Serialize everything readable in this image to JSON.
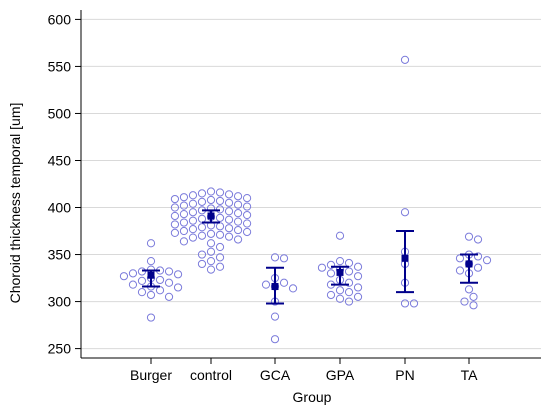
{
  "chart_data": {
    "type": "scatter",
    "subtype": "dot-plot-with-mean-and-ci",
    "xlabel": "Group",
    "ylabel": "Choroid thickness temporal [um]",
    "ylim": [
      240,
      610
    ],
    "yticks": [
      250,
      300,
      350,
      400,
      450,
      500,
      550,
      600
    ],
    "grid": true,
    "colors": {
      "points": "#7b7bdb",
      "summary": "#00008b",
      "grid": "#d9d9d9",
      "axis": "#000000"
    },
    "categories": [
      "Burger",
      "control",
      "GCA",
      "GPA",
      "PN",
      "TA"
    ],
    "groups": [
      {
        "name": "Burger",
        "mean": 328,
        "ci_low": 316,
        "ci_high": 333,
        "points": [
          362,
          343,
          334,
          333,
          332,
          332,
          330,
          329,
          327,
          325,
          323,
          322,
          320,
          318,
          316,
          315,
          312,
          310,
          307,
          305,
          283
        ]
      },
      {
        "name": "control",
        "mean": 391,
        "ci_low": 384,
        "ci_high": 397,
        "points": [
          417,
          416,
          415,
          414,
          413,
          412,
          411,
          410,
          409,
          408,
          407,
          406,
          405,
          404,
          403,
          402,
          401,
          400,
          399,
          398,
          397,
          396,
          395,
          394,
          393,
          392,
          391,
          390,
          389,
          388,
          387,
          386,
          385,
          384,
          383,
          382,
          381,
          380,
          379,
          378,
          377,
          376,
          375,
          374,
          373,
          372,
          371,
          370,
          369,
          368,
          366,
          364,
          362,
          358,
          353,
          350,
          347,
          343,
          340,
          337,
          334
        ]
      },
      {
        "name": "GCA",
        "mean": 316,
        "ci_low": 298,
        "ci_high": 336,
        "points": [
          347,
          346,
          325,
          320,
          318,
          316,
          314,
          300,
          284,
          260
        ]
      },
      {
        "name": "GPA",
        "mean": 331,
        "ci_low": 318,
        "ci_high": 337,
        "points": [
          370,
          343,
          341,
          339,
          337,
          336,
          334,
          332,
          330,
          327,
          323,
          320,
          318,
          315,
          312,
          310,
          307,
          305,
          303,
          300
        ]
      },
      {
        "name": "PN",
        "mean": 346,
        "ci_low": 310,
        "ci_high": 375,
        "points": [
          557,
          395,
          353,
          340,
          320,
          298,
          298
        ]
      },
      {
        "name": "TA",
        "mean": 340,
        "ci_low": 320,
        "ci_high": 350,
        "points": [
          369,
          366,
          350,
          348,
          346,
          344,
          340,
          336,
          333,
          330,
          313,
          305,
          300,
          296
        ]
      }
    ]
  }
}
